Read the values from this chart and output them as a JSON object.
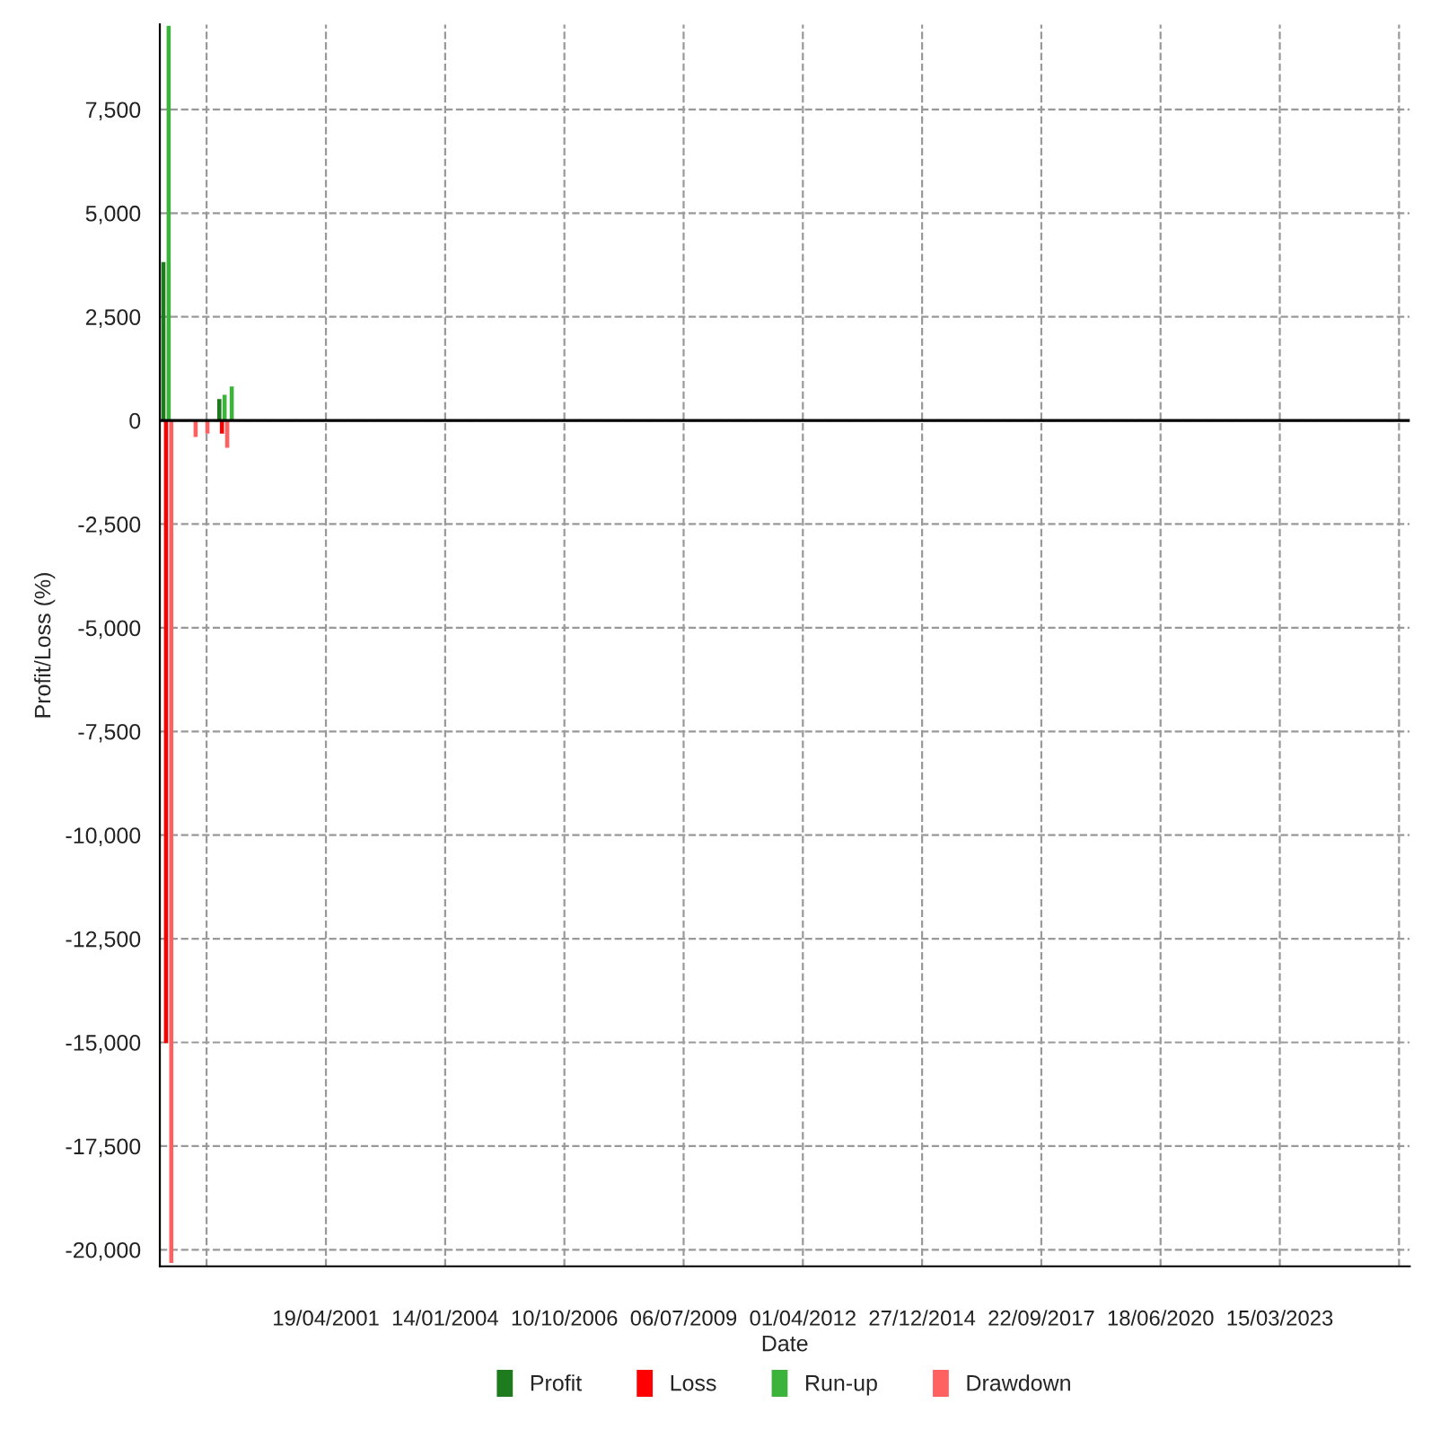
{
  "chart_data": {
    "type": "bar",
    "xlabel": "Date",
    "ylabel": "Profit/Loss (%)",
    "xlim": [
      "1997-06-26",
      "2026-03-09"
    ],
    "xticks": [
      {
        "value": "1998-07-23",
        "label": null
      },
      {
        "value": "2001-04-19",
        "label": "19/04/2001"
      },
      {
        "value": "2004-01-14",
        "label": "14/01/2004"
      },
      {
        "value": "2006-10-10",
        "label": "10/10/2006"
      },
      {
        "value": "2009-07-06",
        "label": "06/07/2009"
      },
      {
        "value": "2012-04-01",
        "label": "01/04/2012"
      },
      {
        "value": "2014-12-27",
        "label": "27/12/2014"
      },
      {
        "value": "2017-09-22",
        "label": "22/09/2017"
      },
      {
        "value": "2020-06-18",
        "label": "18/06/2020"
      },
      {
        "value": "2023-03-15",
        "label": "15/03/2023"
      },
      {
        "value": "2025-12-09",
        "label": null
      }
    ],
    "ylim": [
      -20400,
      9550
    ],
    "yticks": [
      {
        "value": -20000,
        "label": "-20,000"
      },
      {
        "value": -17500,
        "label": "-17,500"
      },
      {
        "value": -15000,
        "label": "-15,000"
      },
      {
        "value": -12500,
        "label": "-12,500"
      },
      {
        "value": -10000,
        "label": "-10,000"
      },
      {
        "value": -7500,
        "label": "-7,500"
      },
      {
        "value": -5000,
        "label": "-5,000"
      },
      {
        "value": -2500,
        "label": "-2,500"
      },
      0,
      {
        "value": 2500,
        "label": "2,500"
      },
      {
        "value": 5000,
        "label": "5,000"
      },
      {
        "value": 7500,
        "label": "7,500"
      }
    ],
    "grid": true,
    "legend": "bottom",
    "ref_lines": [
      {
        "axis": "y",
        "value": 0,
        "color": "#000000"
      }
    ],
    "series": [
      {
        "name": "Profit",
        "color": "#1e7b1e",
        "x": [
          "1997-08-28",
          "1998-12-10"
        ],
        "values": [
          3800,
          500
        ]
      },
      {
        "name": "Loss",
        "color": "#ff0000",
        "x": [
          "1997-08-28",
          "1998-12-10"
        ],
        "values": [
          -15000,
          -300
        ]
      },
      {
        "name": "Run-up",
        "color": "#3cb43c",
        "x": [
          "1997-08-28",
          "1998-12-10",
          "1999-02-08"
        ],
        "values": [
          9500,
          600,
          800
        ]
      },
      {
        "name": "Drawdown",
        "color": "#ff6060",
        "x": [
          "1997-08-28",
          "1998-03-20",
          "1998-06-27",
          "1998-12-10"
        ],
        "values": [
          -20300,
          -380,
          -300,
          -640
        ]
      }
    ]
  }
}
